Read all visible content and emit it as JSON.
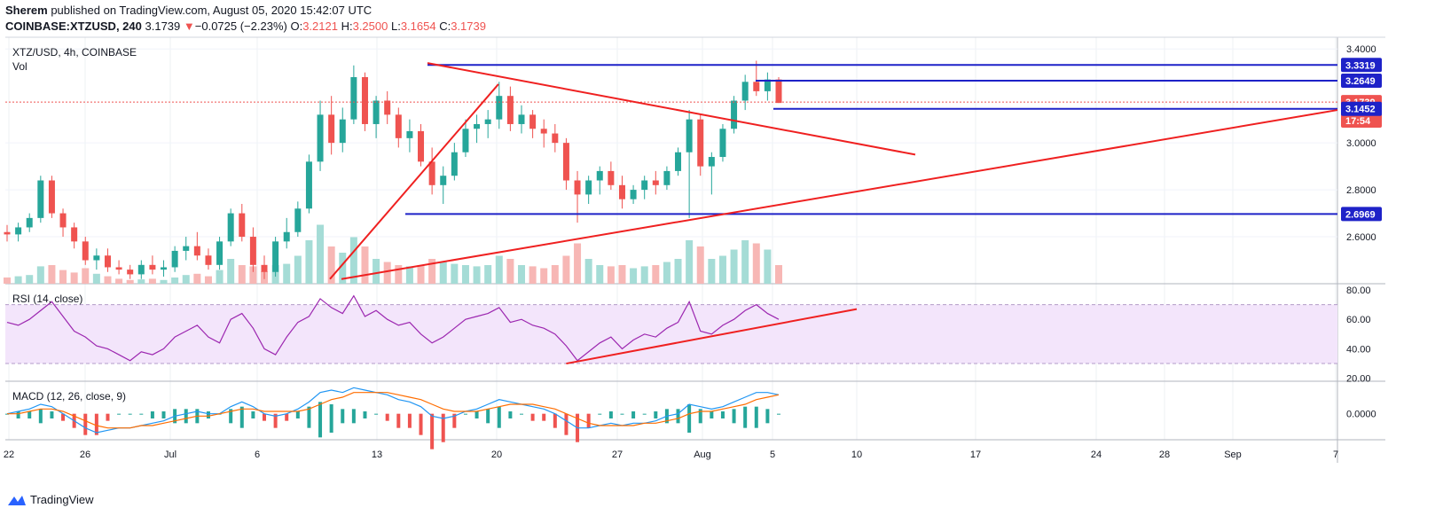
{
  "header": {
    "author": "Sherem",
    "published_text": "published on TradingView.com, August 05, 2020 15:42:07 UTC",
    "symbol": "COINBASE:XTZUSD, 240",
    "last": "3.1739",
    "change": "−0.0725 (−2.23%)",
    "o_label": "O:",
    "o": "3.2121",
    "h_label": "H:",
    "h": "3.2500",
    "l_label": "L:",
    "l": "3.1654",
    "c_label": "C:",
    "c": "3.1739"
  },
  "panes": {
    "main_title": "XTZ/USD, 4h, COINBASE",
    "vol_label": "Vol",
    "rsi_label": "RSI (14, close)",
    "macd_label": "MACD (12, 26, close, 9)"
  },
  "footer": {
    "brand": "TradingView"
  },
  "colors": {
    "up": "#26a69a",
    "down": "#ef5350",
    "level": "#1e22c8",
    "trend": "#ef2020",
    "rsi": "#9c27b0",
    "macd": "#2196f3",
    "signal": "#ff6d00"
  },
  "chart_data": {
    "type": "candlestick",
    "x_ticks": [
      "22",
      "26",
      "Jul",
      "6",
      "13",
      "20",
      "27",
      "Aug",
      "5",
      "10",
      "17",
      "24",
      "28",
      "Sep",
      "7"
    ],
    "price_axis": {
      "ticks": [
        3.4,
        3.0,
        2.8,
        2.6
      ],
      "tick_labels": [
        "3.4000",
        "3.0000",
        "2.8000",
        "2.6000"
      ],
      "range": [
        2.4,
        3.45
      ]
    },
    "level_tags": [
      {
        "value": 3.3319,
        "label": "3.3319",
        "color": "#1e22c8"
      },
      {
        "value": 3.2649,
        "label": "3.2649",
        "color": "#1e22c8"
      },
      {
        "value": 3.1739,
        "label": "3.1739",
        "color": "#ef5350"
      },
      {
        "value": 3.095,
        "label": "17:54",
        "color": "#ef5350"
      },
      {
        "value": 3.1452,
        "label": "3.1452",
        "color": "#1e22c8"
      },
      {
        "value": 2.6969,
        "label": "2.6969",
        "color": "#1e22c8"
      }
    ],
    "horizontal_levels": [
      {
        "value": 3.3319,
        "x_from": "Jul 15",
        "x_to": "axis"
      },
      {
        "value": 3.2649,
        "x_from": "Aug 4",
        "x_to": "axis"
      },
      {
        "value": 3.1452,
        "x_from": "Aug 5",
        "x_to": "axis"
      },
      {
        "value": 2.6969,
        "x_from": "Jul 14",
        "x_to": "axis"
      }
    ],
    "trendlines": [
      {
        "name": "",
        "from": [
          "Jul 15",
          3.34
        ],
        "to": [
          "Aug 14",
          2.95
        ]
      },
      {
        "name": "",
        "from": [
          "Jul 10",
          2.42
        ],
        "to": [
          "Sep 7",
          3.14
        ]
      },
      {
        "name": "",
        "from": [
          "Jul 9",
          2.42
        ],
        "to": [
          "Jul 19",
          3.25
        ]
      }
    ],
    "price_series": [
      [
        2.62,
        2.65,
        2.58,
        2.61
      ],
      [
        2.61,
        2.66,
        2.58,
        2.64
      ],
      [
        2.64,
        2.7,
        2.62,
        2.68
      ],
      [
        2.68,
        2.86,
        2.66,
        2.84
      ],
      [
        2.84,
        2.86,
        2.68,
        2.7
      ],
      [
        2.7,
        2.72,
        2.6,
        2.64
      ],
      [
        2.64,
        2.66,
        2.55,
        2.58
      ],
      [
        2.58,
        2.6,
        2.48,
        2.5
      ],
      [
        2.5,
        2.55,
        2.46,
        2.52
      ],
      [
        2.52,
        2.55,
        2.45,
        2.47
      ],
      [
        2.47,
        2.5,
        2.44,
        2.46
      ],
      [
        2.46,
        2.48,
        2.42,
        2.44
      ],
      [
        2.44,
        2.5,
        2.42,
        2.48
      ],
      [
        2.48,
        2.52,
        2.44,
        2.46
      ],
      [
        2.46,
        2.5,
        2.43,
        2.47
      ],
      [
        2.47,
        2.56,
        2.45,
        2.54
      ],
      [
        2.54,
        2.6,
        2.5,
        2.56
      ],
      [
        2.56,
        2.62,
        2.5,
        2.52
      ],
      [
        2.52,
        2.55,
        2.46,
        2.48
      ],
      [
        2.48,
        2.6,
        2.46,
        2.58
      ],
      [
        2.58,
        2.72,
        2.56,
        2.7
      ],
      [
        2.7,
        2.74,
        2.58,
        2.6
      ],
      [
        2.6,
        2.64,
        2.45,
        2.48
      ],
      [
        2.48,
        2.52,
        2.42,
        2.45
      ],
      [
        2.45,
        2.6,
        2.43,
        2.58
      ],
      [
        2.58,
        2.68,
        2.55,
        2.62
      ],
      [
        2.62,
        2.75,
        2.6,
        2.72
      ],
      [
        2.72,
        2.95,
        2.7,
        2.92
      ],
      [
        2.92,
        3.18,
        2.88,
        3.12
      ],
      [
        3.12,
        3.2,
        2.95,
        3.0
      ],
      [
        3.0,
        3.15,
        2.96,
        3.1
      ],
      [
        3.1,
        3.33,
        3.08,
        3.28
      ],
      [
        3.28,
        3.3,
        3.05,
        3.08
      ],
      [
        3.08,
        3.2,
        3.02,
        3.18
      ],
      [
        3.18,
        3.22,
        3.08,
        3.12
      ],
      [
        3.12,
        3.15,
        2.98,
        3.02
      ],
      [
        3.02,
        3.1,
        2.96,
        3.05
      ],
      [
        3.05,
        3.08,
        2.9,
        2.92
      ],
      [
        2.92,
        2.98,
        2.78,
        2.82
      ],
      [
        2.82,
        2.9,
        2.74,
        2.86
      ],
      [
        2.86,
        3.0,
        2.84,
        2.96
      ],
      [
        2.96,
        3.1,
        2.94,
        3.06
      ],
      [
        3.06,
        3.12,
        3.0,
        3.08
      ],
      [
        3.08,
        3.14,
        3.02,
        3.1
      ],
      [
        3.1,
        3.26,
        3.06,
        3.2
      ],
      [
        3.2,
        3.24,
        3.05,
        3.08
      ],
      [
        3.08,
        3.16,
        3.04,
        3.12
      ],
      [
        3.12,
        3.14,
        3.02,
        3.06
      ],
      [
        3.06,
        3.1,
        2.98,
        3.04
      ],
      [
        3.04,
        3.08,
        2.96,
        3.0
      ],
      [
        3.0,
        3.02,
        2.8,
        2.84
      ],
      [
        2.84,
        2.88,
        2.66,
        2.78
      ],
      [
        2.78,
        2.86,
        2.74,
        2.84
      ],
      [
        2.84,
        2.9,
        2.78,
        2.88
      ],
      [
        2.88,
        2.92,
        2.8,
        2.82
      ],
      [
        2.82,
        2.86,
        2.72,
        2.76
      ],
      [
        2.76,
        2.82,
        2.74,
        2.8
      ],
      [
        2.8,
        2.86,
        2.76,
        2.84
      ],
      [
        2.84,
        2.88,
        2.78,
        2.82
      ],
      [
        2.82,
        2.9,
        2.8,
        2.88
      ],
      [
        2.88,
        2.98,
        2.86,
        2.96
      ],
      [
        2.96,
        3.14,
        2.68,
        3.1
      ],
      [
        3.1,
        3.12,
        2.86,
        2.9
      ],
      [
        2.9,
        2.96,
        2.78,
        2.94
      ],
      [
        2.94,
        3.08,
        2.92,
        3.06
      ],
      [
        3.06,
        3.2,
        3.04,
        3.18
      ],
      [
        3.18,
        3.29,
        3.14,
        3.26
      ],
      [
        3.26,
        3.35,
        3.2,
        3.22
      ],
      [
        3.22,
        3.3,
        3.18,
        3.27
      ],
      [
        3.27,
        3.28,
        3.17,
        3.17
      ]
    ],
    "volume": [
      0.1,
      0.12,
      0.14,
      0.28,
      0.3,
      0.22,
      0.18,
      0.25,
      0.16,
      0.12,
      0.08,
      0.06,
      0.07,
      0.08,
      0.06,
      0.1,
      0.14,
      0.16,
      0.12,
      0.22,
      0.4,
      0.3,
      0.28,
      0.2,
      0.3,
      0.32,
      0.45,
      0.7,
      0.95,
      0.6,
      0.5,
      0.75,
      0.6,
      0.4,
      0.35,
      0.3,
      0.28,
      0.3,
      0.4,
      0.35,
      0.32,
      0.3,
      0.28,
      0.3,
      0.45,
      0.4,
      0.3,
      0.28,
      0.25,
      0.3,
      0.45,
      0.65,
      0.4,
      0.3,
      0.28,
      0.3,
      0.25,
      0.28,
      0.3,
      0.35,
      0.4,
      0.7,
      0.6,
      0.4,
      0.45,
      0.55,
      0.7,
      0.65,
      0.55,
      0.3
    ],
    "rsi": {
      "axis_ticks": [
        80,
        60,
        40,
        20
      ],
      "axis_labels": [
        "80.00",
        "60.00",
        "40.00",
        "20.00"
      ],
      "band": [
        30,
        70
      ],
      "range": [
        18,
        83
      ],
      "values": [
        58,
        56,
        60,
        66,
        72,
        62,
        52,
        48,
        42,
        40,
        36,
        32,
        38,
        36,
        40,
        48,
        52,
        56,
        48,
        44,
        60,
        64,
        54,
        40,
        36,
        48,
        58,
        62,
        74,
        68,
        64,
        76,
        62,
        66,
        60,
        56,
        58,
        50,
        44,
        48,
        54,
        60,
        62,
        64,
        68,
        58,
        60,
        56,
        54,
        50,
        42,
        32,
        38,
        44,
        48,
        40,
        46,
        50,
        48,
        54,
        58,
        72,
        52,
        50,
        56,
        60,
        66,
        70,
        64,
        60
      ],
      "trendline": {
        "from": [
          50,
          30
        ],
        "to": [
          90,
          67
        ]
      }
    },
    "macd": {
      "axis_ticks": [
        0
      ],
      "axis_labels": [
        "0.0000"
      ],
      "range": [
        -0.11,
        0.13
      ],
      "macd": [
        0.0,
        0.01,
        0.02,
        0.04,
        0.03,
        0.0,
        -0.03,
        -0.06,
        -0.08,
        -0.07,
        -0.06,
        -0.06,
        -0.05,
        -0.04,
        -0.03,
        -0.01,
        0.0,
        0.01,
        0.0,
        0.0,
        0.03,
        0.05,
        0.03,
        0.0,
        -0.01,
        0.0,
        0.02,
        0.05,
        0.09,
        0.1,
        0.09,
        0.11,
        0.1,
        0.09,
        0.08,
        0.06,
        0.05,
        0.03,
        -0.01,
        -0.02,
        -0.01,
        0.01,
        0.02,
        0.04,
        0.06,
        0.05,
        0.04,
        0.03,
        0.02,
        0.0,
        -0.03,
        -0.06,
        -0.06,
        -0.05,
        -0.04,
        -0.05,
        -0.04,
        -0.04,
        -0.03,
        -0.01,
        0.0,
        0.04,
        0.03,
        0.02,
        0.03,
        0.05,
        0.07,
        0.09,
        0.09,
        0.08
      ],
      "signal": [
        0.0,
        0.0,
        0.01,
        0.02,
        0.02,
        0.01,
        -0.01,
        -0.03,
        -0.05,
        -0.06,
        -0.06,
        -0.06,
        -0.05,
        -0.05,
        -0.04,
        -0.03,
        -0.02,
        -0.01,
        -0.01,
        0.0,
        0.01,
        0.02,
        0.02,
        0.01,
        0.01,
        0.01,
        0.01,
        0.02,
        0.04,
        0.06,
        0.07,
        0.09,
        0.09,
        0.09,
        0.09,
        0.08,
        0.07,
        0.06,
        0.04,
        0.02,
        0.01,
        0.01,
        0.01,
        0.02,
        0.03,
        0.04,
        0.04,
        0.04,
        0.03,
        0.02,
        0.0,
        -0.02,
        -0.04,
        -0.05,
        -0.05,
        -0.05,
        -0.05,
        -0.04,
        -0.04,
        -0.03,
        -0.02,
        0.0,
        0.01,
        0.01,
        0.02,
        0.03,
        0.04,
        0.06,
        0.07,
        0.08
      ]
    }
  }
}
